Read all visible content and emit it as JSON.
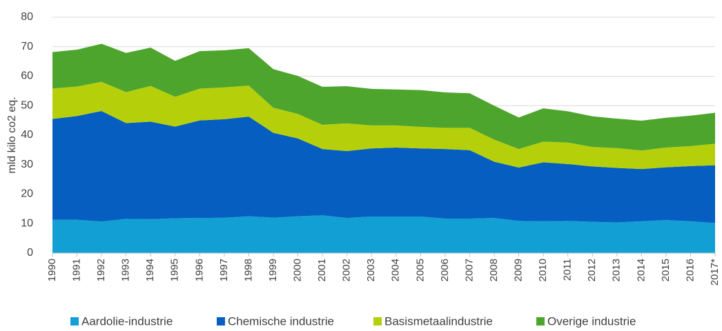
{
  "chart_data": {
    "type": "stacked_area",
    "y_label": "mld kilo co2 eq.",
    "categories": [
      "1990",
      "1991",
      "1992",
      "1993",
      "1994",
      "1995",
      "1996",
      "1997",
      "1998",
      "1999",
      "2000",
      "2001",
      "2002",
      "2003",
      "2004",
      "2005",
      "2006",
      "2007",
      "2008",
      "2009",
      "2010",
      "2011",
      "2012",
      "2013",
      "2014",
      "2015",
      "2016",
      "2017*"
    ],
    "series": [
      {
        "name": "Aardolie-industrie",
        "color": "#12a0d4",
        "values": [
          11.3,
          11.3,
          10.7,
          11.6,
          11.5,
          11.8,
          11.9,
          12.0,
          12.5,
          12.0,
          12.5,
          12.8,
          11.9,
          12.4,
          12.4,
          12.4,
          11.7,
          11.7,
          11.9,
          10.9,
          10.8,
          10.9,
          10.6,
          10.4,
          10.8,
          11.2,
          10.8,
          10.2
        ]
      },
      {
        "name": "Chemische industrie",
        "color": "#065ec0",
        "values": [
          34.2,
          35.2,
          37.5,
          32.5,
          33.1,
          31.1,
          33.1,
          33.4,
          33.8,
          28.8,
          26.4,
          22.5,
          22.7,
          23.1,
          23.4,
          23.1,
          23.6,
          23.2,
          19.1,
          18.1,
          20.0,
          19.3,
          18.8,
          18.5,
          17.7,
          17.9,
          18.7,
          19.6
        ]
      },
      {
        "name": "Basismetaalindustrie",
        "color": "#b6cf0b",
        "values": [
          10.3,
          10.0,
          9.9,
          10.5,
          12.1,
          10.1,
          10.8,
          10.8,
          10.5,
          8.5,
          8.3,
          8.2,
          9.4,
          7.8,
          7.5,
          7.3,
          7.2,
          7.6,
          7.5,
          6.3,
          7.0,
          7.3,
          6.6,
          6.7,
          6.3,
          6.7,
          6.8,
          7.3
        ]
      },
      {
        "name": "Overige industrie",
        "color": "#4ea52d",
        "values": [
          12.4,
          12.5,
          12.9,
          13.3,
          13.0,
          12.2,
          12.7,
          12.6,
          12.7,
          13.1,
          12.9,
          12.9,
          12.6,
          12.4,
          12.2,
          12.5,
          12.0,
          11.7,
          11.5,
          10.7,
          11.3,
          10.6,
          10.4,
          10.0,
          10.1,
          10.1,
          10.3,
          10.5
        ]
      }
    ],
    "ylim": [
      0,
      80
    ],
    "yticks": [
      0,
      10,
      20,
      30,
      40,
      50,
      60,
      70,
      80
    ],
    "grid": true,
    "legend": "bottom"
  }
}
